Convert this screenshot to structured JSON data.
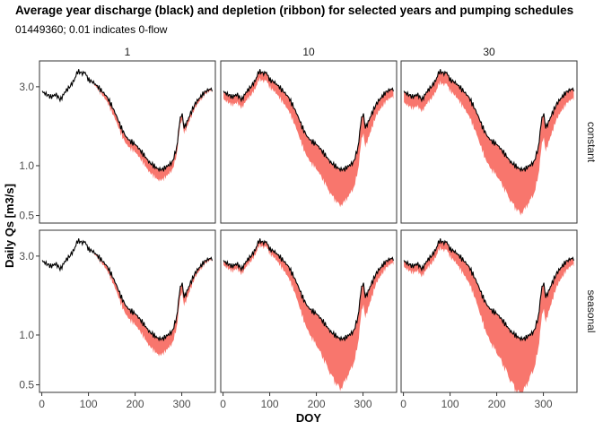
{
  "chart_data": {
    "type": "line",
    "title": "Average year discharge (black) and depletion (ribbon) for selected years and pumping schedules",
    "subtitle": "01449360; 0.01 indicates 0-flow",
    "xlabel": "DOY",
    "ylabel": "Daily Qs [m3/s]",
    "x_scale": "linear",
    "y_scale": "log",
    "xlim": [
      -5,
      372
    ],
    "ylim": [
      0.45,
      4.3
    ],
    "x_ticks": [
      0,
      100,
      200,
      300
    ],
    "y_ticks": [
      0.5,
      1.0,
      3.0
    ],
    "y_tick_labels": [
      "0.5",
      "1.0",
      "3.0"
    ],
    "column_facet_labels": [
      "1",
      "10",
      "30"
    ],
    "row_facet_labels": [
      "constant",
      "seasonal"
    ],
    "line_color": "#000000",
    "ribbon_color": "#f8766d",
    "discharge": {
      "doy": [
        1,
        10,
        20,
        30,
        40,
        50,
        60,
        70,
        76,
        80,
        88,
        92,
        100,
        110,
        120,
        130,
        140,
        150,
        160,
        170,
        180,
        190,
        200,
        210,
        220,
        230,
        240,
        250,
        260,
        270,
        280,
        290,
        295,
        300,
        305,
        310,
        320,
        330,
        340,
        350,
        360,
        365
      ],
      "value": [
        2.8,
        2.7,
        2.6,
        2.7,
        2.5,
        2.8,
        3.0,
        3.3,
        3.7,
        3.7,
        3.6,
        3.7,
        3.3,
        3.2,
        3.0,
        2.8,
        2.6,
        2.3,
        2.0,
        1.7,
        1.5,
        1.4,
        1.35,
        1.25,
        1.15,
        1.05,
        1.0,
        0.95,
        0.95,
        1.0,
        1.05,
        1.3,
        1.8,
        2.1,
        1.7,
        1.8,
        2.1,
        2.4,
        2.6,
        2.8,
        2.9,
        2.9
      ]
    },
    "depletion_fraction": {
      "doy": [
        1,
        50,
        100,
        150,
        200,
        250,
        300,
        330,
        365
      ],
      "panels": [
        {
          "row": "constant",
          "col": "1",
          "values": [
            0.0,
            0.0,
            0.0,
            0.08,
            0.1,
            0.14,
            0.08,
            0.05,
            0.02
          ]
        },
        {
          "row": "constant",
          "col": "10",
          "values": [
            0.1,
            0.11,
            0.1,
            0.18,
            0.28,
            0.38,
            0.24,
            0.14,
            0.1
          ]
        },
        {
          "row": "constant",
          "col": "30",
          "values": [
            0.14,
            0.15,
            0.14,
            0.24,
            0.34,
            0.44,
            0.28,
            0.18,
            0.12
          ]
        },
        {
          "row": "seasonal",
          "col": "1",
          "values": [
            0.0,
            0.0,
            0.0,
            0.07,
            0.14,
            0.2,
            0.12,
            0.05,
            0.02
          ]
        },
        {
          "row": "seasonal",
          "col": "10",
          "values": [
            0.06,
            0.07,
            0.06,
            0.16,
            0.34,
            0.48,
            0.26,
            0.12,
            0.06
          ]
        },
        {
          "row": "seasonal",
          "col": "30",
          "values": [
            0.08,
            0.1,
            0.1,
            0.22,
            0.4,
            0.52,
            0.3,
            0.16,
            0.08
          ]
        }
      ]
    }
  }
}
